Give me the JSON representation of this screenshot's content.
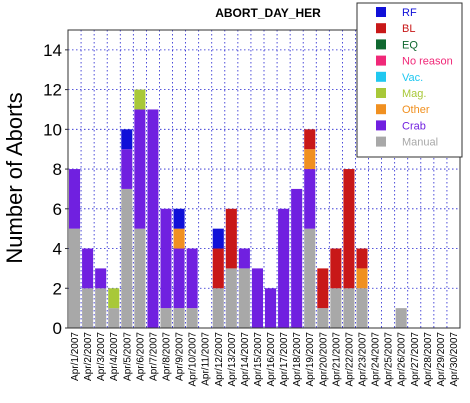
{
  "chart_data": {
    "type": "bar",
    "stacked": true,
    "title": "ABORT_DAY_HER",
    "ylabel": "Number of Aborts",
    "xlabel": "",
    "ylim": [
      0,
      15
    ],
    "yticks": [
      0,
      2,
      4,
      6,
      8,
      10,
      12,
      14
    ],
    "grid": true,
    "legend_position": "top-right",
    "categories": [
      "Apr/1/2007",
      "Apr/2/2007",
      "Apr/3/2007",
      "Apr/4/2007",
      "Apr/5/2007",
      "Apr/6/2007",
      "Apr/7/2007",
      "Apr/8/2007",
      "Apr/9/2007",
      "Apr/10/2007",
      "Apr/11/2007",
      "Apr/12/2007",
      "Apr/13/2007",
      "Apr/14/2007",
      "Apr/15/2007",
      "Apr/16/2007",
      "Apr/17/2007",
      "Apr/18/2007",
      "Apr/19/2007",
      "Apr/20/2007",
      "Apr/21/2007",
      "Apr/22/2007",
      "Apr/23/2007",
      "Apr/24/2007",
      "Apr/25/2007",
      "Apr/26/2007",
      "Apr/27/2007",
      "Apr/28/2007",
      "Apr/29/2007",
      "Apr/30/2007"
    ],
    "series": [
      {
        "name": "Manual",
        "color": "#a8a8a8",
        "values": [
          5,
          2,
          2,
          1,
          7,
          5,
          0,
          1,
          1,
          1,
          0,
          2,
          3,
          3,
          0,
          0,
          0,
          0,
          5,
          1,
          2,
          2,
          2,
          0,
          0,
          1,
          0,
          0,
          0,
          0
        ]
      },
      {
        "name": "Crab",
        "color": "#7020e0",
        "values": [
          3,
          2,
          1,
          0,
          2,
          6,
          11,
          5,
          3,
          3,
          0,
          0,
          0,
          1,
          3,
          2,
          6,
          7,
          3,
          0,
          0,
          0,
          0,
          0,
          0,
          0,
          0,
          0,
          0,
          0
        ]
      },
      {
        "name": "Other",
        "color": "#f09020",
        "values": [
          0,
          0,
          0,
          0,
          0,
          0,
          0,
          0,
          1,
          0,
          0,
          0,
          0,
          0,
          0,
          0,
          0,
          0,
          1,
          0,
          0,
          0,
          1,
          0,
          0,
          0,
          0,
          0,
          0,
          0
        ]
      },
      {
        "name": "Mag.",
        "color": "#a8c838",
        "values": [
          0,
          0,
          0,
          1,
          0,
          1,
          0,
          0,
          0,
          0,
          0,
          0,
          0,
          0,
          0,
          0,
          0,
          0,
          0,
          0,
          0,
          0,
          0,
          0,
          0,
          0,
          0,
          0,
          0,
          0
        ]
      },
      {
        "name": "Vac.",
        "color": "#20c8f0",
        "values": [
          0,
          0,
          0,
          0,
          0,
          0,
          0,
          0,
          0,
          0,
          0,
          0,
          0,
          0,
          0,
          0,
          0,
          0,
          0,
          0,
          0,
          0,
          0,
          0,
          0,
          0,
          0,
          0,
          0,
          0
        ]
      },
      {
        "name": "No reason",
        "color": "#f02878",
        "values": [
          0,
          0,
          0,
          0,
          0,
          0,
          0,
          0,
          0,
          0,
          0,
          0,
          0,
          0,
          0,
          0,
          0,
          0,
          0,
          0,
          0,
          0,
          0,
          0,
          0,
          0,
          0,
          0,
          0,
          0
        ]
      },
      {
        "name": "EQ",
        "color": "#106830",
        "values": [
          0,
          0,
          0,
          0,
          0,
          0,
          0,
          0,
          0,
          0,
          0,
          0,
          0,
          0,
          0,
          0,
          0,
          0,
          0,
          0,
          0,
          0,
          0,
          0,
          0,
          0,
          0,
          0,
          0,
          0
        ]
      },
      {
        "name": "BL",
        "color": "#c81818",
        "values": [
          0,
          0,
          0,
          0,
          0,
          0,
          0,
          0,
          0,
          0,
          0,
          2,
          3,
          0,
          0,
          0,
          0,
          0,
          1,
          2,
          2,
          6,
          1,
          0,
          0,
          0,
          0,
          0,
          0,
          0
        ]
      },
      {
        "name": "RF",
        "color": "#1010d8",
        "values": [
          0,
          0,
          0,
          0,
          1,
          0,
          0,
          0,
          1,
          0,
          0,
          1,
          0,
          0,
          0,
          0,
          0,
          0,
          0,
          0,
          0,
          0,
          0,
          0,
          0,
          0,
          0,
          0,
          0,
          0
        ]
      }
    ],
    "legend_order": [
      "RF",
      "BL",
      "EQ",
      "No reason",
      "Vac.",
      "Mag.",
      "Other",
      "Crab",
      "Manual"
    ]
  }
}
